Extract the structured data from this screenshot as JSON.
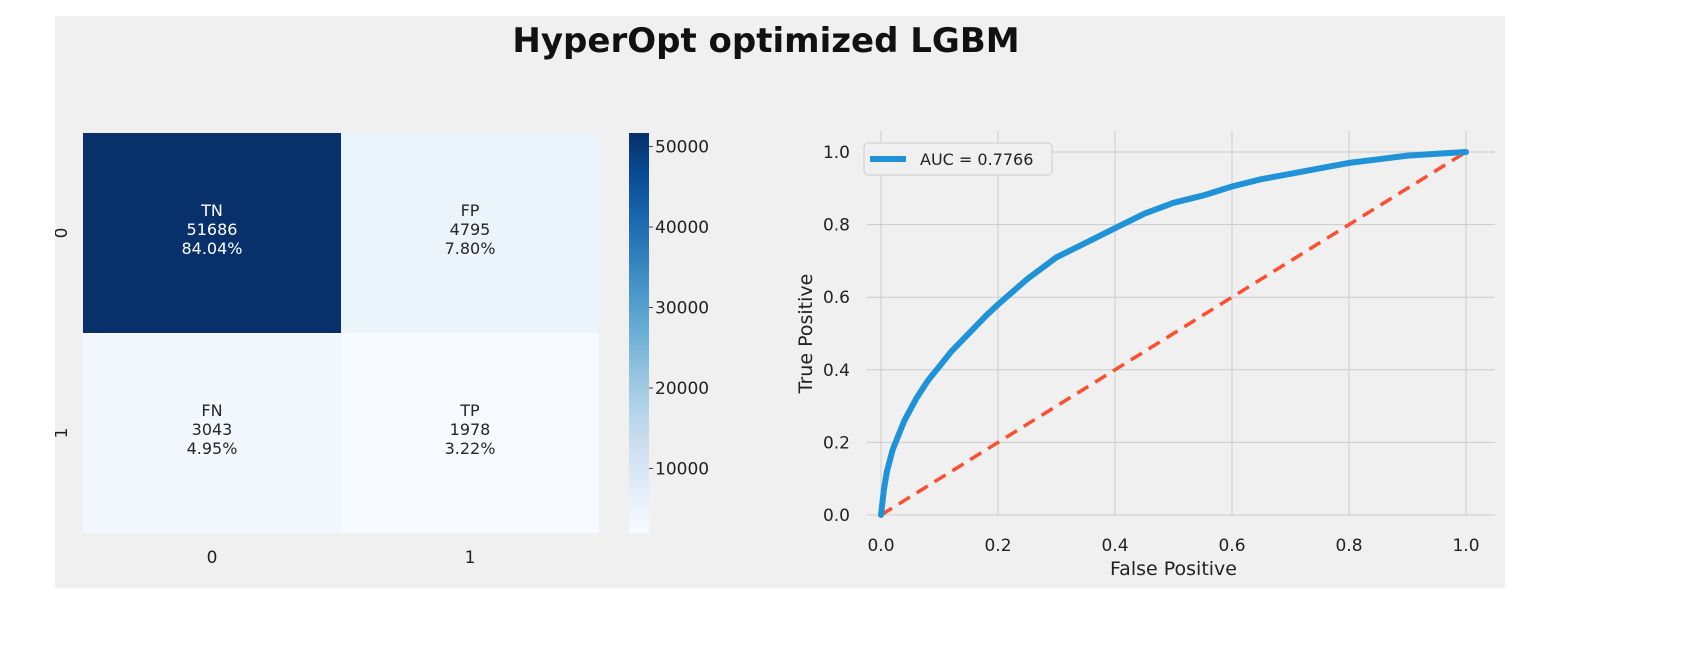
{
  "title": "HyperOpt optimized LGBM",
  "colors": {
    "figure_bg": "#f0f0f0",
    "cmap_dark": "#08306b",
    "cmap_light": "#f7fbff",
    "roc_line": "#1f92d8",
    "diagonal": "#fc4f30",
    "grid": "#cbcbcb"
  },
  "chart_data": [
    {
      "type": "heatmap",
      "cmap": "Blues",
      "row_labels": [
        "0",
        "1"
      ],
      "col_labels": [
        "0",
        "1"
      ],
      "cells": [
        [
          {
            "name": "TN",
            "count_label": "51686",
            "pct_label": "84.04%",
            "value": 51686
          },
          {
            "name": "FP",
            "count_label": "4795",
            "pct_label": "7.80%",
            "value": 4795
          }
        ],
        [
          {
            "name": "FN",
            "count_label": "3043",
            "pct_label": "4.95%",
            "value": 3043
          },
          {
            "name": "TP",
            "count_label": "1978",
            "pct_label": "3.22%",
            "value": 1978
          }
        ]
      ],
      "colorbar": {
        "min": 1978,
        "max": 51686,
        "ticks": [
          10000,
          20000,
          30000,
          40000,
          50000
        ],
        "tick_labels": [
          "10000",
          "20000",
          "30000",
          "40000",
          "50000"
        ]
      }
    },
    {
      "type": "line",
      "xlabel": "False Positive",
      "ylabel": "True Positive",
      "xlim": [
        0.0,
        1.0
      ],
      "ylim": [
        0.0,
        1.0
      ],
      "xticks": [
        "0.0",
        "0.2",
        "0.4",
        "0.6",
        "0.8",
        "1.0"
      ],
      "yticks": [
        "0.0",
        "0.2",
        "0.4",
        "0.6",
        "0.8",
        "1.0"
      ],
      "grid": true,
      "legend": "top-left",
      "series": [
        {
          "name": "AUC = 0.7766",
          "x": [
            0.0,
            0.005,
            0.01,
            0.02,
            0.03,
            0.04,
            0.05,
            0.06,
            0.08,
            0.1,
            0.12,
            0.15,
            0.18,
            0.2,
            0.25,
            0.3,
            0.35,
            0.4,
            0.45,
            0.5,
            0.55,
            0.6,
            0.65,
            0.7,
            0.75,
            0.8,
            0.85,
            0.9,
            0.95,
            1.0
          ],
          "y": [
            0.0,
            0.07,
            0.12,
            0.18,
            0.22,
            0.26,
            0.29,
            0.32,
            0.37,
            0.41,
            0.45,
            0.5,
            0.55,
            0.58,
            0.65,
            0.71,
            0.75,
            0.79,
            0.83,
            0.86,
            0.88,
            0.905,
            0.925,
            0.94,
            0.955,
            0.97,
            0.98,
            0.99,
            0.995,
            1.0
          ]
        },
        {
          "name": "",
          "x": [
            0.0,
            1.0
          ],
          "y": [
            0.0,
            1.0
          ]
        }
      ]
    }
  ]
}
